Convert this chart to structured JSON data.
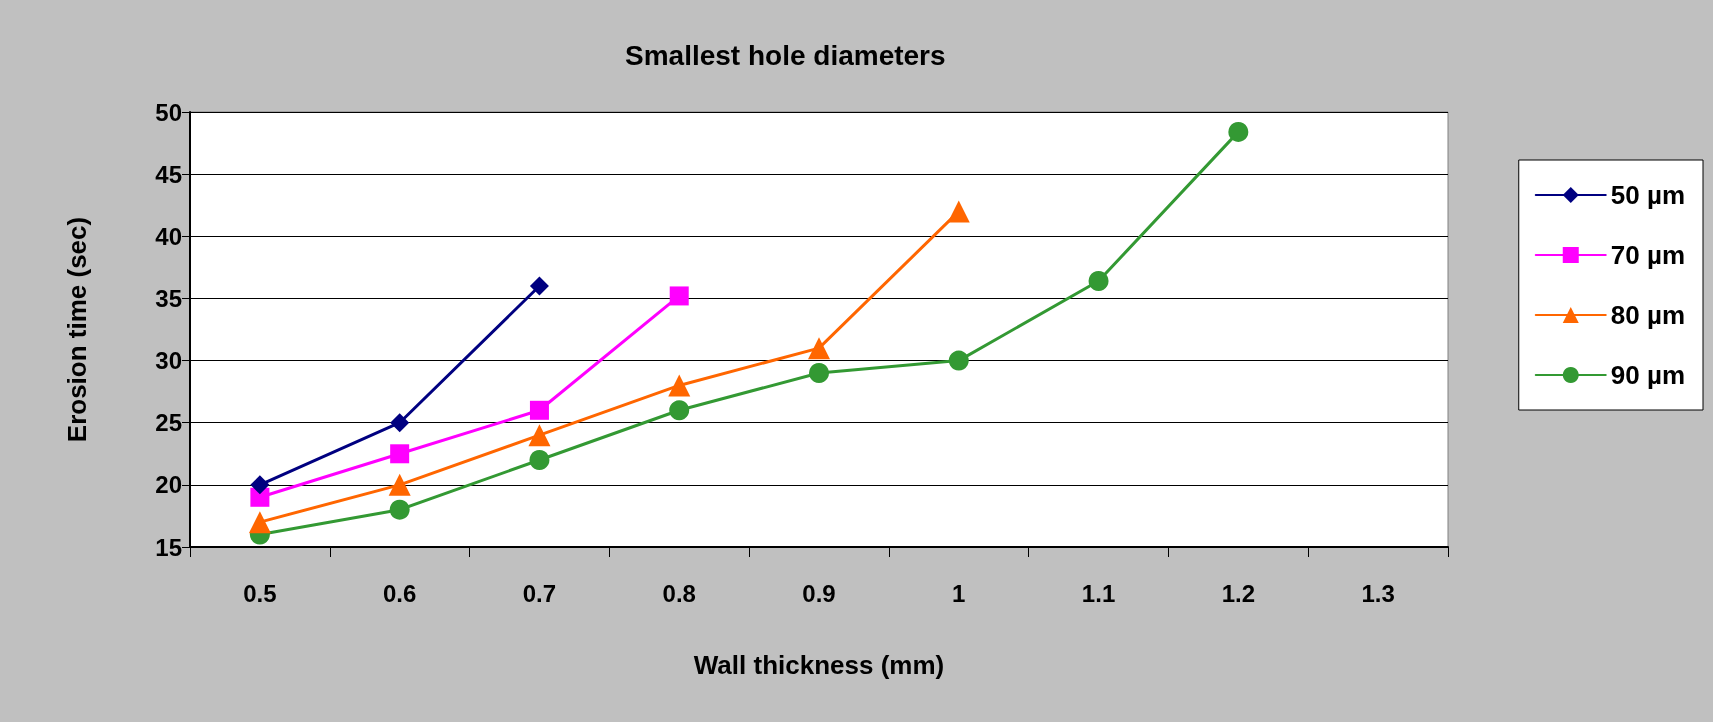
{
  "chart_data": {
    "type": "line",
    "title": "Smallest hole diameters",
    "xlabel": "Wall thickness (mm)",
    "ylabel": "Erosion time (sec)",
    "categories": [
      "0.5",
      "0.6",
      "0.7",
      "0.8",
      "0.9",
      "1",
      "1.1",
      "1.2",
      "1.3"
    ],
    "series": [
      {
        "name": "50 µm",
        "color": "#000080",
        "marker": "diamond",
        "values": [
          20,
          25,
          36,
          null,
          null,
          null,
          null,
          null,
          null
        ]
      },
      {
        "name": "70 µm",
        "color": "#ff00ff",
        "marker": "square",
        "values": [
          19,
          22.5,
          26,
          35.2,
          null,
          null,
          null,
          null,
          null
        ]
      },
      {
        "name": "80 µm",
        "color": "#ff6600",
        "marker": "triangle",
        "values": [
          17,
          20,
          24,
          28,
          31,
          42,
          null,
          null,
          null
        ]
      },
      {
        "name": "90 µm",
        "color": "#339933",
        "marker": "circle",
        "values": [
          16,
          18,
          22,
          26,
          29,
          30,
          36.4,
          48.4,
          null
        ]
      }
    ],
    "ylim": [
      15,
      50
    ],
    "yticks": [
      15,
      20,
      25,
      30,
      35,
      40,
      45,
      50
    ],
    "grid": "y",
    "legend": "right",
    "line_style": "solid"
  }
}
